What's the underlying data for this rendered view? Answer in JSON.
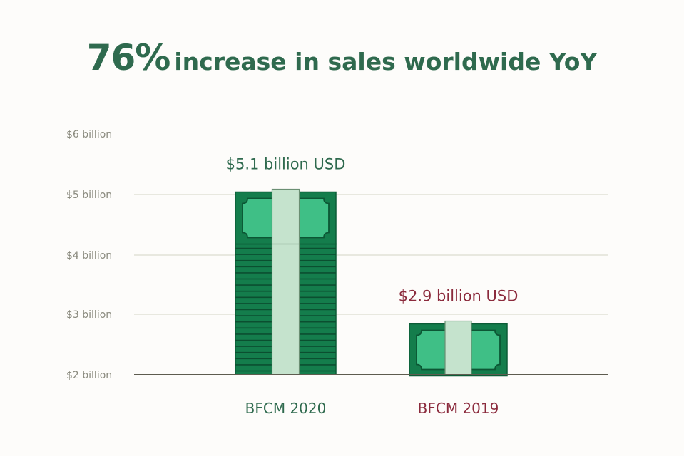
{
  "header": {
    "title_highlight": "76%",
    "title_rest": "increase in sales worldwide YoY"
  },
  "colors": {
    "title": "#2f6a4e",
    "bill_dark": "#147d4c",
    "bill_light": "#c5e3cd",
    "green_label": "#2f6a4e",
    "red_label": "#8b2a3c",
    "tick_label": "#8a8a7e",
    "gridline": "#e2e1d6",
    "baseline": "#5e5c4f"
  },
  "chart_data": {
    "type": "bar",
    "title": "76% increase in sales worldwide YoY",
    "categories": [
      "BFCM 2020",
      "BFCM 2019"
    ],
    "values": [
      5.1,
      2.9
    ],
    "value_labels": [
      "$5.1 billion USD",
      "$2.9 billion USD"
    ],
    "category_colors": [
      "green",
      "red"
    ],
    "unit": "billion USD",
    "ylim": [
      2,
      6
    ],
    "yticks": [
      {
        "value": 2,
        "label": "$2 billion"
      },
      {
        "value": 3,
        "label": "$3 billion"
      },
      {
        "value": 4,
        "label": "$4 billion"
      },
      {
        "value": 5,
        "label": "$5 billion"
      },
      {
        "value": 6,
        "label": "$6 billion"
      }
    ],
    "grid": true,
    "xlabel": "",
    "ylabel": ""
  }
}
